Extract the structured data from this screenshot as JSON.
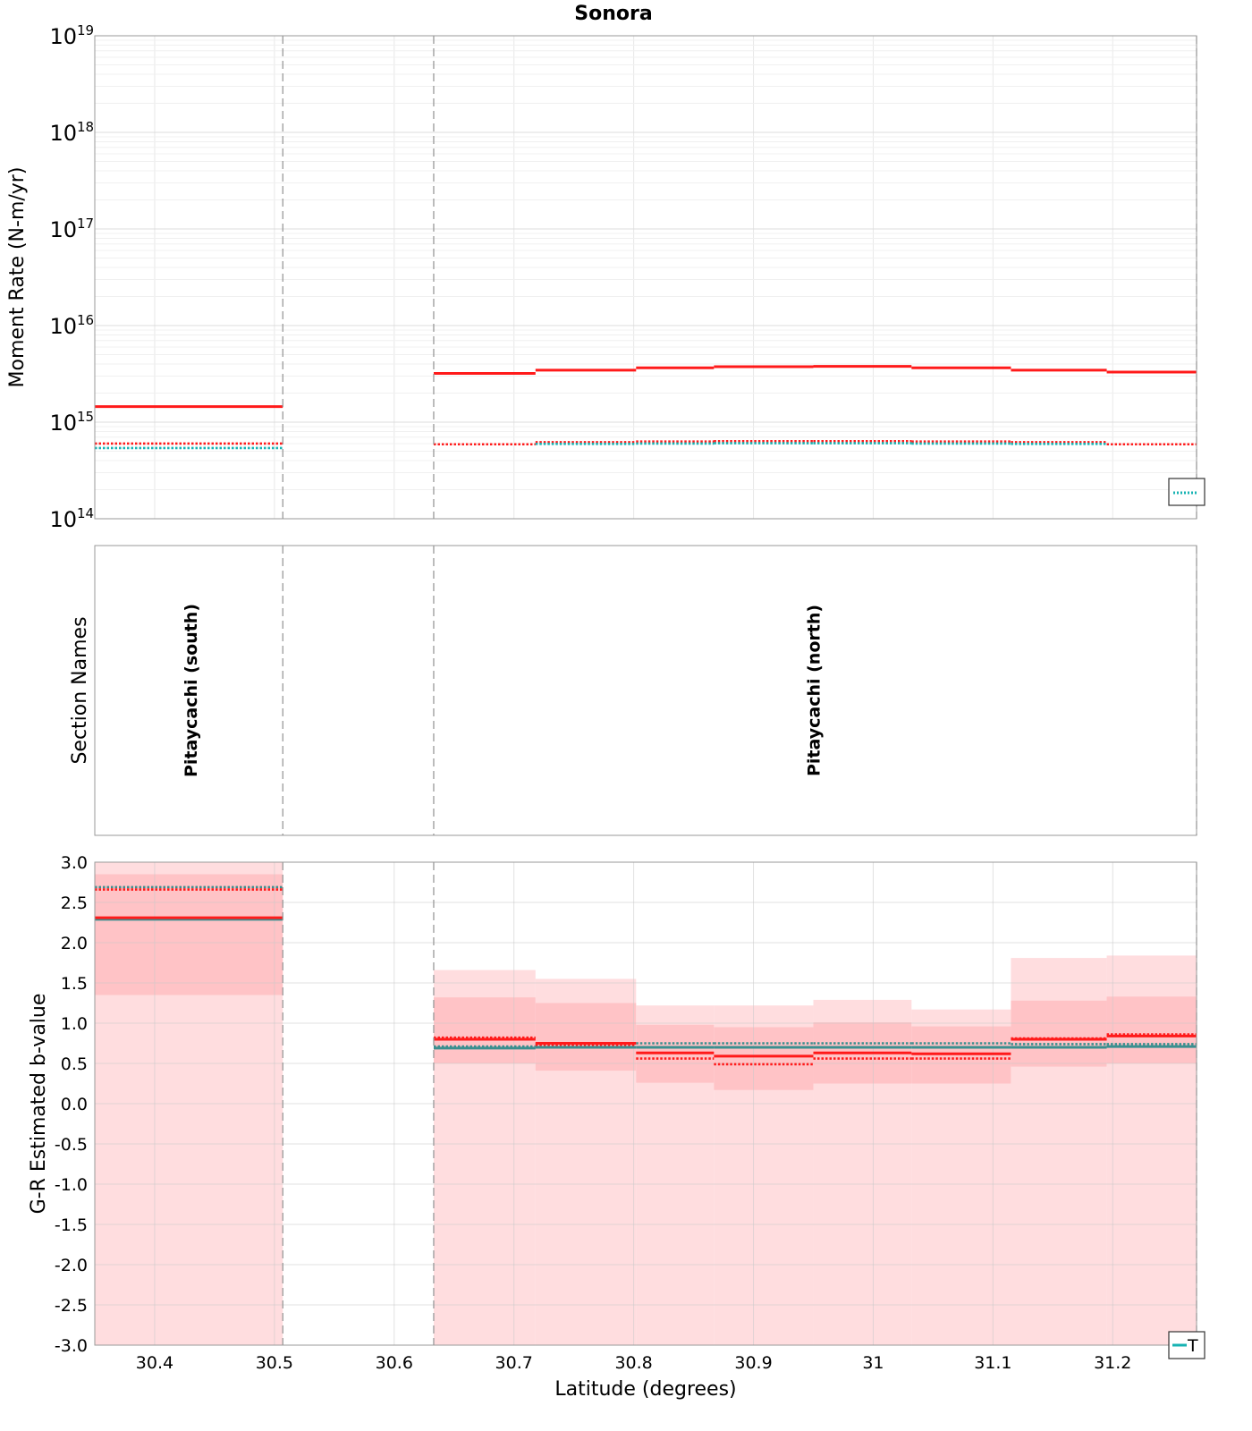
{
  "title": "Sonora",
  "xlabel": "Latitude (degrees)",
  "colors": {
    "red": "#ff1a1a",
    "teal": "#17b3b3",
    "teal_dark": "#3a8f8f",
    "band_light": "#ffdddf",
    "band_dark": "#ffc3c6",
    "grid": "#e8e8e8",
    "divider": "#999999"
  },
  "chart_data": [
    {
      "type": "line",
      "panel": "moment_rate",
      "ylabel": "Moment Rate (N-m/yr)",
      "yscale": "log",
      "ylim": [
        100000000000000.0,
        1e+19
      ],
      "xlim": [
        30.35,
        31.27
      ],
      "y_tick_labels": [
        {
          "exp": "14"
        },
        {
          "exp": "15"
        },
        {
          "exp": "16"
        },
        {
          "exp": "17"
        },
        {
          "exp": "18"
        },
        {
          "exp": "19"
        }
      ],
      "section_boundaries": [
        30.507,
        30.633
      ],
      "series": [
        {
          "style": "red-solid",
          "segments": [
            [
              30.35,
              30.507,
              1450000000000000.0
            ],
            [
              30.633,
              30.718,
              3200000000000000.0
            ],
            [
              30.718,
              30.802,
              3450000000000000.0
            ],
            [
              30.802,
              30.867,
              3650000000000000.0
            ],
            [
              30.867,
              30.95,
              3750000000000000.0
            ],
            [
              30.95,
              31.032,
              3780000000000000.0
            ],
            [
              31.032,
              31.115,
              3650000000000000.0
            ],
            [
              31.115,
              31.195,
              3450000000000000.0
            ],
            [
              31.195,
              31.27,
              3300000000000000.0
            ]
          ]
        },
        {
          "style": "red-dotted",
          "segments": [
            [
              30.35,
              30.507,
              600000000000000.0
            ],
            [
              30.633,
              30.718,
              590000000000000.0
            ],
            [
              30.718,
              30.802,
              620000000000000.0
            ],
            [
              30.802,
              30.867,
              630000000000000.0
            ],
            [
              30.867,
              30.95,
              635000000000000.0
            ],
            [
              30.95,
              31.032,
              635000000000000.0
            ],
            [
              31.032,
              31.115,
              630000000000000.0
            ],
            [
              31.115,
              31.195,
              620000000000000.0
            ],
            [
              31.195,
              31.27,
              590000000000000.0
            ]
          ]
        },
        {
          "style": "teal-dotted",
          "segments": [
            [
              30.35,
              30.507,
              540000000000000.0
            ],
            [
              30.718,
              30.802,
              595000000000000.0
            ],
            [
              30.802,
              30.867,
              600000000000000.0
            ],
            [
              30.867,
              30.95,
              605000000000000.0
            ],
            [
              30.95,
              31.032,
              605000000000000.0
            ],
            [
              31.032,
              31.115,
              600000000000000.0
            ],
            [
              31.115,
              31.195,
              595000000000000.0
            ]
          ]
        }
      ]
    },
    {
      "type": "table",
      "panel": "section_names",
      "ylabel": "Section Names",
      "sections": [
        {
          "name": "Pitaycachi (south)",
          "center": 30.43
        },
        {
          "name": "Pitaycachi (north)",
          "center": 30.95
        }
      ]
    },
    {
      "type": "area",
      "panel": "b_value",
      "ylabel": "G-R Estimated b-value",
      "ylim": [
        -3.0,
        3.0
      ],
      "y_ticks": [
        "-3.0",
        "-2.5",
        "-2.0",
        "-1.5",
        "-1.0",
        "-0.5",
        "0.0",
        "0.5",
        "1.0",
        "1.5",
        "2.0",
        "2.5",
        "3.0"
      ],
      "x_ticks": [
        "30.4",
        "30.5",
        "30.6",
        "30.7",
        "30.8",
        "30.9",
        "31",
        "31.1",
        "31.2"
      ],
      "bins": [
        {
          "x0": 30.35,
          "x1": 30.507,
          "outer": [
            -3.0,
            3.0
          ],
          "inner": [
            1.35,
            2.85
          ],
          "red": 2.31,
          "red_dotted": 2.66,
          "teal": 2.29,
          "teal_dotted": 2.69
        },
        {
          "x0": 30.633,
          "x1": 30.718,
          "outer": [
            -3.0,
            1.66
          ],
          "inner": [
            0.5,
            1.32
          ],
          "red": 0.8,
          "red_dotted": 0.82,
          "teal": 0.69,
          "teal_dotted": 0.71
        },
        {
          "x0": 30.718,
          "x1": 30.802,
          "outer": [
            -3.0,
            1.55
          ],
          "inner": [
            0.41,
            1.25
          ],
          "red": 0.75,
          "red_dotted": 0.73,
          "teal": 0.7,
          "teal_dotted": 0.74
        },
        {
          "x0": 30.802,
          "x1": 30.867,
          "outer": [
            -3.0,
            1.22
          ],
          "inner": [
            0.26,
            0.98
          ],
          "red": 0.63,
          "red_dotted": 0.56,
          "teal": 0.7,
          "teal_dotted": 0.75
        },
        {
          "x0": 30.867,
          "x1": 30.95,
          "outer": [
            -3.0,
            1.22
          ],
          "inner": [
            0.17,
            0.95
          ],
          "red": 0.59,
          "red_dotted": 0.49,
          "teal": 0.7,
          "teal_dotted": 0.75
        },
        {
          "x0": 30.95,
          "x1": 31.032,
          "outer": [
            -3.0,
            1.29
          ],
          "inner": [
            0.25,
            1.01
          ],
          "red": 0.63,
          "red_dotted": 0.56,
          "teal": 0.7,
          "teal_dotted": 0.75
        },
        {
          "x0": 31.032,
          "x1": 31.115,
          "outer": [
            -3.0,
            1.17
          ],
          "inner": [
            0.25,
            0.96
          ],
          "red": 0.62,
          "red_dotted": 0.56,
          "teal": 0.7,
          "teal_dotted": 0.75
        },
        {
          "x0": 31.115,
          "x1": 31.195,
          "outer": [
            -3.0,
            1.81
          ],
          "inner": [
            0.46,
            1.28
          ],
          "red": 0.8,
          "red_dotted": 0.81,
          "teal": 0.7,
          "teal_dotted": 0.74
        },
        {
          "x0": 31.195,
          "x1": 31.27,
          "outer": [
            -3.0,
            1.84
          ],
          "inner": [
            0.5,
            1.33
          ],
          "red": 0.84,
          "red_dotted": 0.86,
          "teal": 0.71,
          "teal_dotted": 0.74
        }
      ],
      "legend_fragment": "T"
    }
  ]
}
